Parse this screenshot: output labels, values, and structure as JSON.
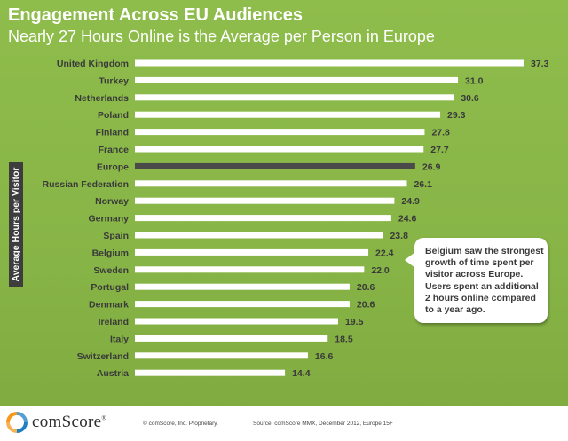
{
  "slide": {
    "title": "Engagement Across EU Audiences",
    "subtitle": "Nearly 27 Hours Online is the Average per Person in Europe"
  },
  "chart_data": {
    "type": "bar",
    "orientation": "horizontal",
    "title": "Engagement Across EU Audiences",
    "subtitle": "Nearly 27 Hours Online is the Average per Person in Europe",
    "ylabel": "Average Hours per Visitor",
    "xlabel": "",
    "categories": [
      "United Kingdom",
      "Turkey",
      "Netherlands",
      "Poland",
      "Finland",
      "France",
      "Europe",
      "Russian Federation",
      "Norway",
      "Germany",
      "Spain",
      "Belgium",
      "Sweden",
      "Portugal",
      "Denmark",
      "Ireland",
      "Italy",
      "Switzerland",
      "Austria"
    ],
    "values": [
      37.3,
      31.0,
      30.6,
      29.3,
      27.8,
      27.7,
      26.9,
      26.1,
      24.9,
      24.6,
      23.8,
      22.4,
      22.0,
      20.6,
      20.6,
      19.5,
      18.5,
      16.6,
      14.4
    ],
    "value_labels": [
      "37.3",
      "31.0",
      "30.6",
      "29.3",
      "27.8",
      "27.7",
      "26.9",
      "26.1",
      "24.9",
      "24.6",
      "23.8",
      "22.4",
      "22.0",
      "20.6",
      "20.6",
      "19.5",
      "18.5",
      "16.6",
      "14.4"
    ],
    "highlight_category": "Europe",
    "bar_color": "#ffffff",
    "highlight_color": "#4a4a4a",
    "grid": false,
    "xlim": [
      0,
      37.3
    ]
  },
  "callout": {
    "text": "Belgium saw the strongest growth of time spent per visitor across Europe. Users spent an additional 2 hours online compared to a year ago."
  },
  "footer": {
    "logo_text": "comScore",
    "logo_mark": "®",
    "copyright": "© comScore, Inc.    Proprietary.",
    "source": "Source: comScore MMX, December 2012, Europe 15+"
  },
  "colors": {
    "background": "#8dbb4a",
    "bar": "#ffffff",
    "highlight_bar": "#4a4a4a",
    "text": "#3a3a3a",
    "logo_orange": "#f39a1e",
    "logo_blue": "#1e7fc4"
  }
}
